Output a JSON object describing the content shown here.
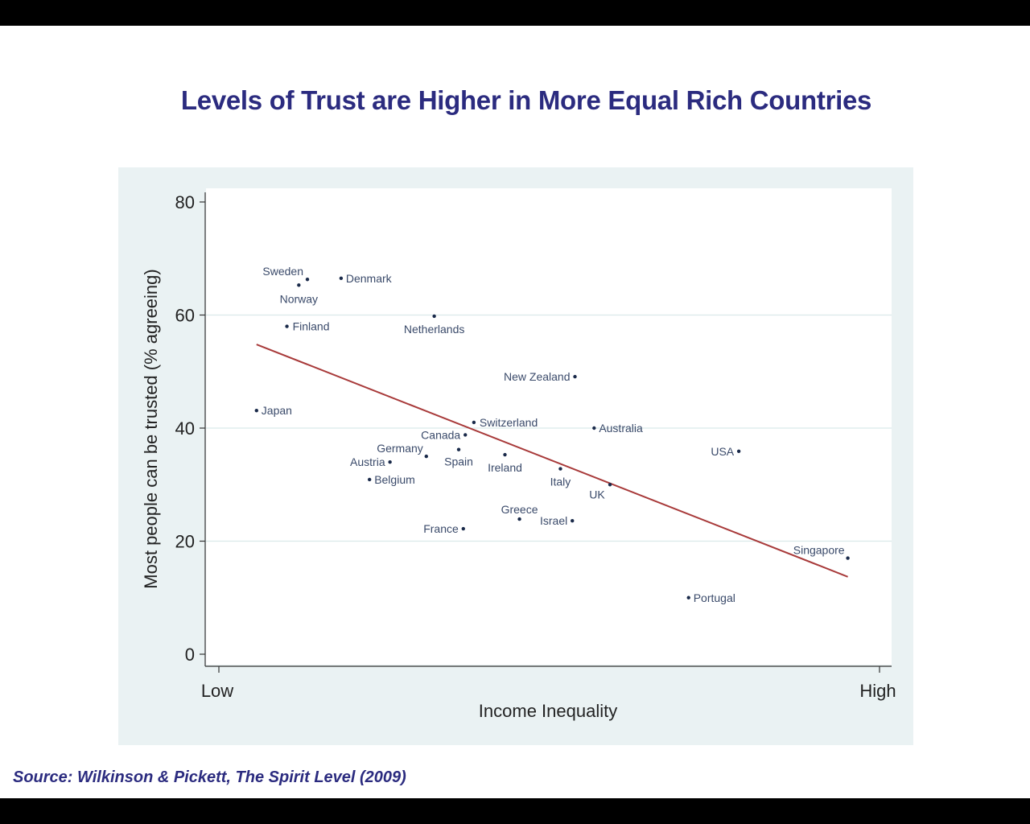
{
  "title": "Levels of Trust are Higher in More Equal Rich Countries",
  "source": "Source: Wilkinson & Pickett, The Spirit Level (2009)",
  "colors": {
    "title": "#2b2b7f",
    "panel_background": "#eaf2f3",
    "plot_background": "#ffffff",
    "gridline": "#dbe9ea",
    "point": "#1a2a4a",
    "label": "#3a4a6a",
    "trend_line": "#a83a3a"
  },
  "chart_data": {
    "type": "scatter",
    "xlabel": "Income Inequality",
    "ylabel": "Most people can be trusted (% agreeing)",
    "x_ticks": [
      "Low",
      "High"
    ],
    "xlim": [
      0,
      100
    ],
    "ylim": [
      0,
      80
    ],
    "y_ticks": [
      0,
      20,
      40,
      60,
      80
    ],
    "grid": true,
    "points": [
      {
        "name": "Sweden",
        "x": 13.4,
        "y": 66.3
      },
      {
        "name": "Norway",
        "x": 12.1,
        "y": 65.3
      },
      {
        "name": "Denmark",
        "x": 18.5,
        "y": 66.5
      },
      {
        "name": "Finland",
        "x": 10.3,
        "y": 58.0
      },
      {
        "name": "Netherlands",
        "x": 32.6,
        "y": 59.8
      },
      {
        "name": "Japan",
        "x": 5.7,
        "y": 43.1
      },
      {
        "name": "New Zealand",
        "x": 53.9,
        "y": 49.1
      },
      {
        "name": "Switzerland",
        "x": 38.6,
        "y": 41.0
      },
      {
        "name": "Canada",
        "x": 37.3,
        "y": 38.8
      },
      {
        "name": "Germany",
        "x": 31.4,
        "y": 35.0
      },
      {
        "name": "Spain",
        "x": 36.3,
        "y": 36.2
      },
      {
        "name": "Austria",
        "x": 25.9,
        "y": 34.0
      },
      {
        "name": "Ireland",
        "x": 43.3,
        "y": 35.3
      },
      {
        "name": "Belgium",
        "x": 22.8,
        "y": 30.9
      },
      {
        "name": "Australia",
        "x": 56.8,
        "y": 40.0
      },
      {
        "name": "Italy",
        "x": 51.7,
        "y": 32.8
      },
      {
        "name": "UK",
        "x": 59.2,
        "y": 30.0
      },
      {
        "name": "USA",
        "x": 78.7,
        "y": 35.9
      },
      {
        "name": "Greece",
        "x": 45.5,
        "y": 23.9
      },
      {
        "name": "Israel",
        "x": 53.5,
        "y": 23.6
      },
      {
        "name": "France",
        "x": 37.0,
        "y": 22.2
      },
      {
        "name": "Singapore",
        "x": 95.2,
        "y": 17.0
      },
      {
        "name": "Portugal",
        "x": 71.1,
        "y": 10.0
      }
    ],
    "trend_line": {
      "x1": 5.7,
      "y1": 54.8,
      "x2": 95.2,
      "y2": 13.7
    }
  }
}
